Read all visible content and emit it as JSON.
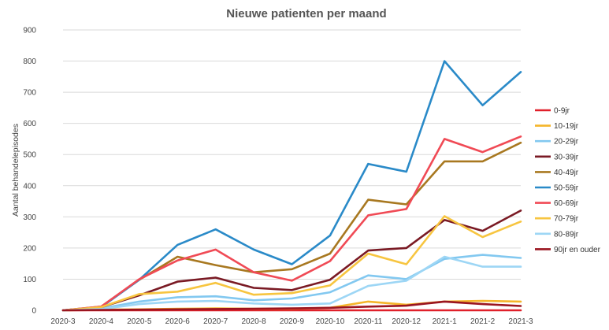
{
  "chart_data": {
    "type": "line",
    "title": "Nieuwe patienten per maand",
    "xlabel": "",
    "ylabel": "Aantal behandelepisodes",
    "ylim": [
      0,
      900
    ],
    "yticks": [
      0,
      100,
      200,
      300,
      400,
      500,
      600,
      700,
      800,
      900
    ],
    "grid": true,
    "legend_position": "right",
    "x": [
      "2020-3",
      "2020-4",
      "2020-5",
      "2020-6",
      "2020-7",
      "2020-8",
      "2020-9",
      "2020-10",
      "2020-11",
      "2020-12",
      "2021-1",
      "2021-2",
      "2021-3"
    ],
    "series": [
      {
        "name": "0-9jr",
        "color": "#e0202a",
        "values": [
          0,
          0,
          0,
          0,
          0,
          0,
          0,
          0,
          0,
          0,
          0,
          0,
          0
        ]
      },
      {
        "name": "10-19jr",
        "color": "#f5b52a",
        "values": [
          0,
          2,
          3,
          5,
          6,
          5,
          5,
          8,
          28,
          18,
          28,
          30,
          28
        ]
      },
      {
        "name": "20-29jr",
        "color": "#82c8f0",
        "values": [
          0,
          6,
          28,
          42,
          45,
          32,
          38,
          58,
          112,
          100,
          165,
          178,
          168
        ]
      },
      {
        "name": "30-39jr",
        "color": "#7a1a24",
        "values": [
          0,
          10,
          48,
          92,
          105,
          72,
          65,
          98,
          192,
          200,
          290,
          255,
          320
        ]
      },
      {
        "name": "40-49jr",
        "color": "#a87820",
        "values": [
          0,
          12,
          98,
          172,
          145,
          122,
          132,
          182,
          355,
          340,
          478,
          478,
          538
        ]
      },
      {
        "name": "50-59jr",
        "color": "#2a8ac8",
        "values": [
          0,
          10,
          98,
          210,
          260,
          195,
          148,
          240,
          470,
          445,
          800,
          658,
          765
        ]
      },
      {
        "name": "60-69jr",
        "color": "#f04a55",
        "values": [
          0,
          12,
          100,
          160,
          195,
          122,
          95,
          158,
          305,
          325,
          550,
          508,
          558
        ]
      },
      {
        "name": "70-79jr",
        "color": "#f7c540",
        "values": [
          0,
          10,
          52,
          60,
          88,
          50,
          55,
          80,
          182,
          148,
          302,
          235,
          285
        ]
      },
      {
        "name": "80-89jr",
        "color": "#9dd6f5",
        "values": [
          0,
          4,
          20,
          28,
          30,
          22,
          18,
          22,
          78,
          95,
          172,
          140,
          140
        ]
      },
      {
        "name": "90jr en ouder",
        "color": "#9a1520",
        "values": [
          0,
          1,
          2,
          3,
          4,
          5,
          6,
          8,
          12,
          15,
          28,
          20,
          14
        ]
      }
    ]
  }
}
